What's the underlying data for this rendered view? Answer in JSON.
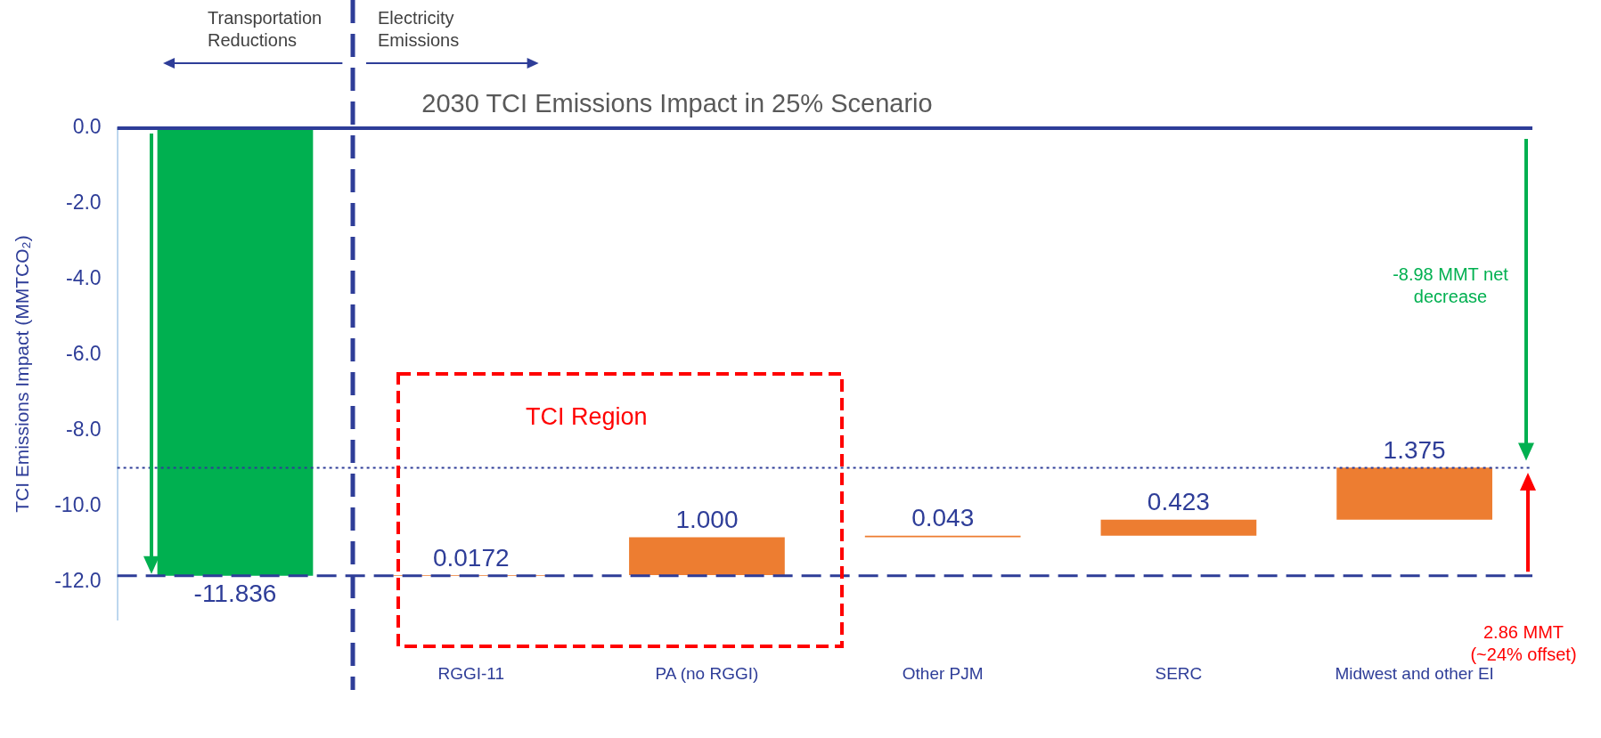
{
  "chart_data": {
    "type": "bar",
    "title": "2030 TCI Emissions Impact in 25% Scenario",
    "ylabel": "TCI Emissions Impact (MMTCO₂)",
    "categories": [
      null,
      "RGGI-11",
      "PA (no RGGI)",
      "Other PJM",
      "SERC",
      "Midwest and other EI"
    ],
    "values": [
      -11.836,
      0.0172,
      1,
      0.043,
      0.423,
      1.375
    ],
    "base": [
      0,
      -11.836,
      -11.8188,
      -10.8188,
      -10.7758,
      -10.3528
    ],
    "colors": [
      "#00b050",
      "#ed7d31",
      "#ed7d31",
      "#ed7d31",
      "#ed7d31",
      "#ed7d31"
    ],
    "value_labels": [
      "-11.836",
      "0.0172",
      "1.000",
      "0.043",
      "0.423",
      "1.375"
    ],
    "ylim": [
      -13,
      0
    ],
    "yticks": [
      {
        "value": 0,
        "label": "0.0"
      },
      {
        "value": -2,
        "label": "-2.0"
      },
      {
        "value": -4,
        "label": "-4.0"
      },
      {
        "value": -6,
        "label": "-6.0"
      },
      {
        "value": -8,
        "label": "-8.0"
      },
      {
        "value": -10,
        "label": "-10.0"
      },
      {
        "value": -12,
        "label": "-12.0"
      }
    ],
    "ref_lines": [
      {
        "axis": "y",
        "value": 0,
        "color": "#2e3d98",
        "line_style": "solid"
      },
      {
        "axis": "y",
        "value": -11.836,
        "color": "#2e3d98",
        "line_style": "dashed"
      },
      {
        "axis": "y",
        "value": -8.98,
        "color": "#2e3d98",
        "line_style": "dotted"
      }
    ],
    "annotations": [
      "Transportation Reductions",
      "Electricity Emissions",
      "TCI Region",
      "-8.98 MMT net decrease",
      "2.86 MMT (~24% offset)"
    ],
    "grid": false,
    "legend": false
  }
}
